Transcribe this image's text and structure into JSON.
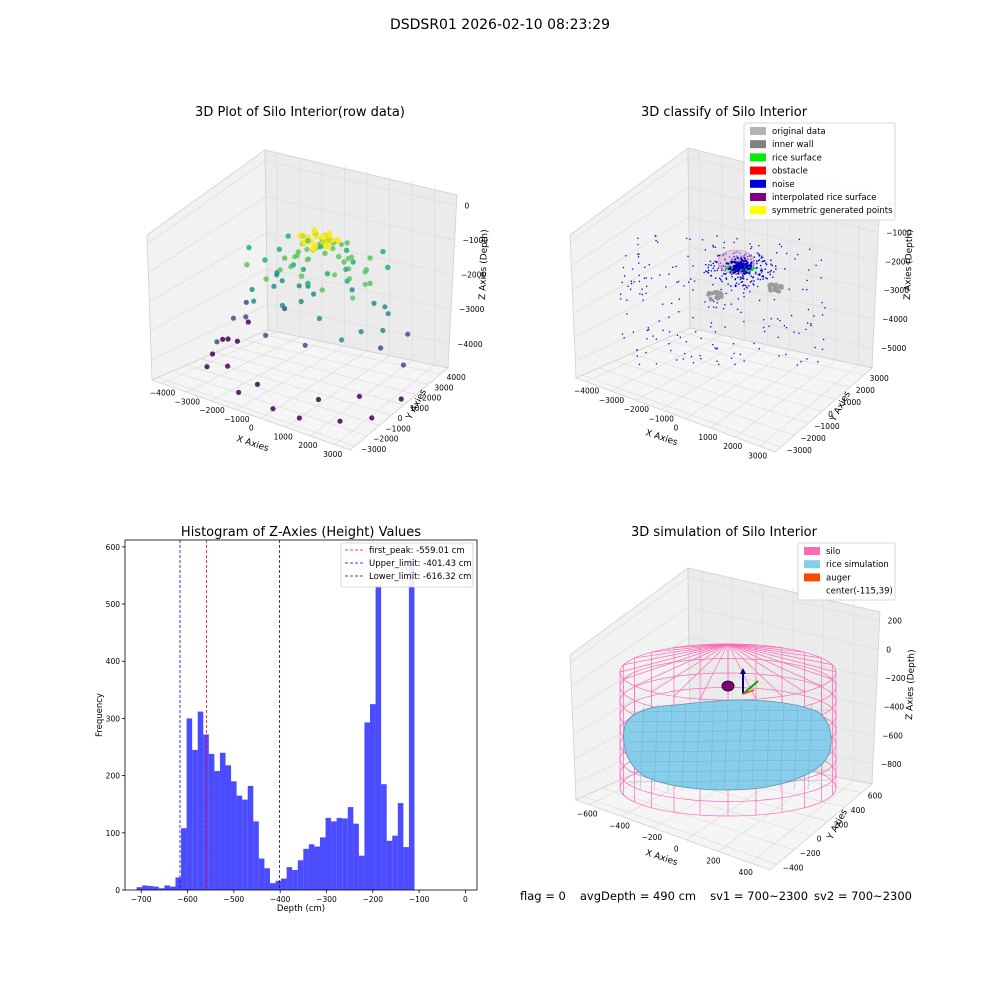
{
  "figure": {
    "suptitle": "DSDSR01 2026-02-10 08:23:29",
    "status": {
      "flag": "flag = 0",
      "avg_depth": "avgDepth = 490 cm",
      "sv1": "sv1 = 700~2300",
      "sv2": "sv2 = 700~2300"
    }
  },
  "chart_data": [
    {
      "type": "scatter",
      "projection": "3d",
      "title": "3D Plot of Silo Interior(row data)",
      "xlabel": "X Axies",
      "ylabel": "Y Axies",
      "zlabel": "Z Axies (Depth)",
      "x_ticks": [
        "−4000",
        "−3000",
        "−2000",
        "−1000",
        "0",
        "1000",
        "2000",
        "3000"
      ],
      "y_ticks": [
        "−3000",
        "−2000",
        "−1000",
        "0",
        "1000",
        "2000",
        "3000",
        "4000"
      ],
      "z_ticks": [
        "0",
        "−1000",
        "−2000",
        "−3000",
        "−4000"
      ],
      "xlim": [
        -4300,
        3200
      ],
      "ylim": [
        -3500,
        4300
      ],
      "zlim": [
        -4500,
        100
      ],
      "colormap": "viridis (by depth)",
      "grid": true,
      "series": [
        {
          "points": [
            [
              -300,
              800,
              -800
            ],
            [
              -150,
              600,
              -850
            ],
            [
              0,
              900,
              -780
            ],
            [
              200,
              700,
              -820
            ],
            [
              -400,
              1000,
              -900
            ],
            [
              100,
              1100,
              -860
            ],
            [
              300,
              500,
              -900
            ],
            [
              -200,
              300,
              -950
            ],
            [
              50,
              400,
              -880
            ],
            [
              400,
              900,
              -840
            ],
            [
              -600,
              1200,
              -1100
            ],
            [
              600,
              1000,
              -1150
            ],
            [
              -800,
              700,
              -1200
            ],
            [
              900,
              500,
              -1250
            ],
            [
              -500,
              200,
              -1300
            ],
            [
              700,
              -100,
              -1350
            ],
            [
              -900,
              -200,
              -1500
            ],
            [
              1100,
              200,
              -1400
            ],
            [
              -1200,
              600,
              -1450
            ],
            [
              500,
              1400,
              -1200
            ],
            [
              -1500,
              1300,
              -1600
            ],
            [
              1300,
              900,
              -1600
            ],
            [
              -1000,
              -600,
              -1800
            ],
            [
              1500,
              -300,
              -1700
            ],
            [
              -1700,
              300,
              -1900
            ],
            [
              300,
              -800,
              -1800
            ],
            [
              -300,
              -700,
              -1750
            ],
            [
              1800,
              600,
              -1900
            ],
            [
              -1300,
              1700,
              -1700
            ],
            [
              900,
              1600,
              -1500
            ],
            [
              -2000,
              800,
              -2100
            ],
            [
              2000,
              1200,
              -2200
            ],
            [
              -2200,
              -500,
              -2300
            ],
            [
              2100,
              -800,
              -2300
            ],
            [
              -600,
              -1300,
              -2200
            ],
            [
              800,
              -1300,
              -2200
            ],
            [
              0,
              -1100,
              -2000
            ],
            [
              -1800,
              -1100,
              -2400
            ],
            [
              1700,
              -1400,
              -2500
            ],
            [
              2300,
              300,
              -2400
            ],
            [
              -2500,
              1500,
              -2600
            ],
            [
              -2700,
              0,
              -2800
            ],
            [
              2500,
              -200,
              -2700
            ],
            [
              -2400,
              -1400,
              -2900
            ],
            [
              600,
              -1900,
              -2800
            ],
            [
              -900,
              -1900,
              -2900
            ],
            [
              2400,
              1800,
              -2700
            ],
            [
              -1600,
              2200,
              -2500
            ],
            [
              1200,
              2400,
              -2400
            ],
            [
              -100,
              2500,
              -2300
            ],
            [
              -3000,
              500,
              -3300
            ],
            [
              2800,
              800,
              -3200
            ],
            [
              -2800,
              -1800,
              -3500
            ],
            [
              -3200,
              -700,
              -3700
            ],
            [
              -3500,
              200,
              -3900
            ],
            [
              -3300,
              1200,
              -3600
            ],
            [
              2600,
              -1800,
              -3600
            ],
            [
              1500,
              -2600,
              -3800
            ],
            [
              -700,
              -2800,
              -3900
            ],
            [
              -2000,
              -2500,
              -3800
            ],
            [
              -3700,
              -500,
              -4200
            ],
            [
              -3600,
              1000,
              -4100
            ],
            [
              2900,
              -1500,
              -4100
            ],
            [
              2200,
              -2400,
              -4200
            ],
            [
              0,
              -3000,
              -4300
            ],
            [
              -1300,
              -3000,
              -4200
            ],
            [
              3000,
              300,
              -3900
            ],
            [
              -2600,
              2400,
              -3300
            ],
            [
              -3400,
              -1400,
              -4300
            ],
            [
              1000,
              -3000,
              -4300
            ]
          ]
        }
      ]
    },
    {
      "type": "scatter",
      "projection": "3d",
      "title": "3D classify of Silo Interior",
      "xlabel": "X Axies",
      "ylabel": "Y Axies",
      "zlabel": "Z Axies (Depth)",
      "x_ticks": [
        "−4000",
        "−3000",
        "−2000",
        "−1000",
        "0",
        "1000",
        "2000",
        "3000"
      ],
      "y_ticks": [
        "−3000",
        "−2000",
        "−1000",
        "0",
        "1000",
        "2000",
        "3000"
      ],
      "z_ticks": [
        "0",
        "−1000",
        "−2000",
        "−3000",
        "−4000",
        "−5000"
      ],
      "xlim": [
        -4300,
        3200
      ],
      "ylim": [
        -3500,
        3500
      ],
      "zlim": [
        -5600,
        1000
      ],
      "legend_position": "top-right",
      "grid": true,
      "legend": [
        {
          "label": "original data",
          "color": "#b3b3b3"
        },
        {
          "label": "inner wall",
          "color": "#808080"
        },
        {
          "label": "rice surface",
          "color": "#00ee00"
        },
        {
          "label": "obstacle",
          "color": "#ff0000"
        },
        {
          "label": "noise",
          "color": "#0000dd"
        },
        {
          "label": "interpolated rice surface",
          "color": "#800080"
        },
        {
          "label": "symmetric generated points",
          "color": "#ffff00"
        }
      ]
    },
    {
      "type": "bar",
      "title": "Histogram of Z-Axies (Height) Values",
      "xlabel": "Depth (cm)",
      "ylabel": "Frequency",
      "xlim": [
        -735,
        25
      ],
      "ylim": [
        0,
        612
      ],
      "x_ticks": [
        -700,
        -600,
        -500,
        -400,
        -300,
        -200,
        -100,
        0
      ],
      "y_ticks": [
        0,
        100,
        200,
        300,
        400,
        500,
        600
      ],
      "bar_color": "#0000ff",
      "bin_edges_start": -710,
      "bin_width": 12,
      "counts": [
        5,
        8,
        7,
        6,
        3,
        8,
        6,
        22,
        108,
        300,
        245,
        312,
        272,
        238,
        208,
        240,
        218,
        190,
        165,
        158,
        182,
        120,
        55,
        38,
        12,
        16,
        20,
        40,
        35,
        52,
        72,
        80,
        76,
        92,
        126,
        120,
        126,
        125,
        145,
        116,
        60,
        293,
        325,
        530,
        185,
        86,
        95,
        152,
        75,
        580
      ],
      "vlines": [
        {
          "x": -559.01,
          "label": "first_peak: -559.01 cm",
          "color": "#ff0000"
        },
        {
          "x": -401.43,
          "label": "Upper_limit: -401.43 cm",
          "color": "#0000ff"
        },
        {
          "x": -616.32,
          "label": "Lower_limit: -616.32 cm",
          "color": "#0000ff"
        }
      ],
      "legend_position": "top-right"
    },
    {
      "type": "surface",
      "projection": "3d",
      "title": "3D simulation of Silo Interior",
      "xlabel": "X Axies",
      "ylabel": "Y Axies",
      "zlabel": "Z Axies (Depth)",
      "x_ticks": [
        "−600",
        "−400",
        "−200",
        "0",
        "200",
        "400"
      ],
      "y_ticks": [
        "−400",
        "−200",
        "0",
        "200",
        "400",
        "600"
      ],
      "z_ticks": [
        "200",
        "0",
        "−200",
        "−400",
        "−600",
        "−800"
      ],
      "legend_position": "top-right",
      "grid": true,
      "legend": [
        {
          "label": "silo",
          "color": "#ff69b4"
        },
        {
          "label": "rice simulation",
          "color": "#87ceeb"
        },
        {
          "label": "auger",
          "color": "#ff4500"
        },
        {
          "label": "center(-115,39)",
          "color": "none"
        }
      ]
    }
  ]
}
